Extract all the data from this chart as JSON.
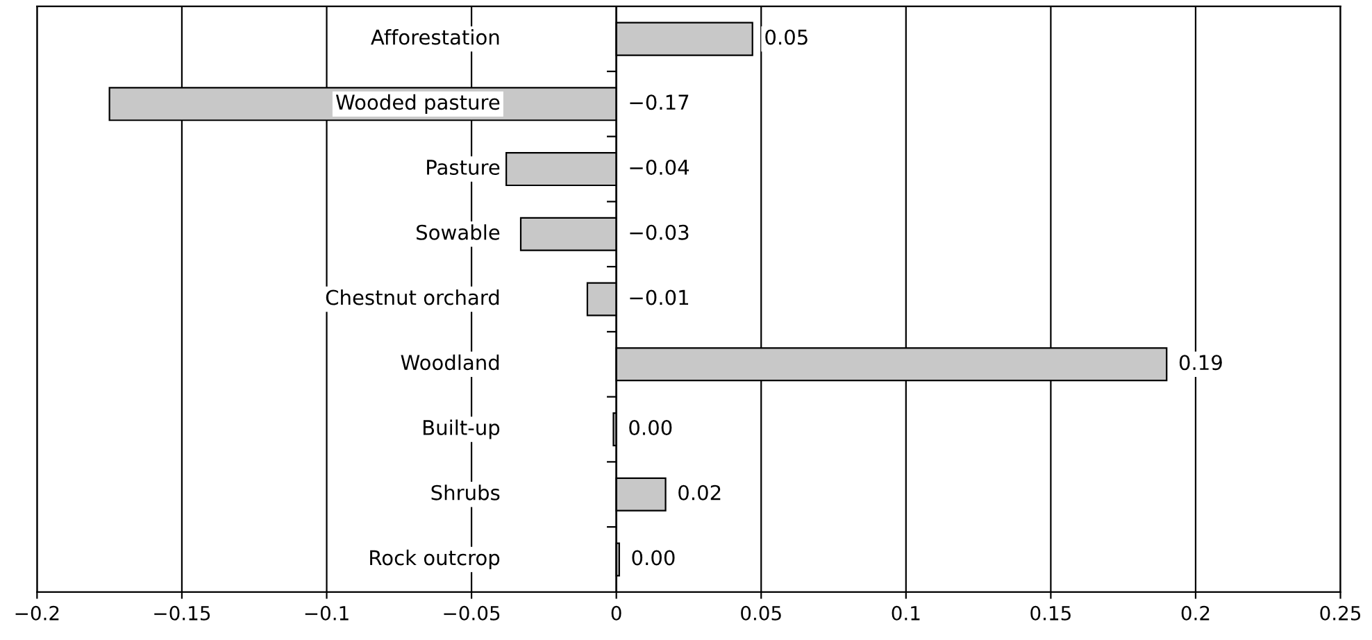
{
  "chart_data": {
    "type": "bar",
    "orientation": "horizontal",
    "categories": [
      "Afforestation",
      "Wooded pasture",
      "Pasture",
      "Sowable",
      "Chestnut orchard",
      "Woodland",
      "Built-up",
      "Shrubs",
      "Rock outcrop"
    ],
    "values": [
      0.047,
      -0.175,
      -0.038,
      -0.033,
      -0.01,
      0.19,
      -0.001,
      0.017,
      0.001
    ],
    "value_labels": [
      "0.05",
      "−0.17",
      "−0.04",
      "−0.03",
      "−0.01",
      "0.19",
      "0.00",
      "0.02",
      "0.00"
    ],
    "color": "#c8c8c8",
    "xlim": [
      -0.2,
      0.25
    ],
    "xticks": [
      {
        "value": -0.2,
        "label": "−0.2"
      },
      {
        "value": -0.15,
        "label": "−0.15"
      },
      {
        "value": -0.1,
        "label": "−0.1"
      },
      {
        "value": -0.05,
        "label": "−0.05"
      },
      0,
      0.05,
      0.1,
      0.15,
      0.2,
      0.25
    ],
    "grid": "x",
    "legend": false
  }
}
